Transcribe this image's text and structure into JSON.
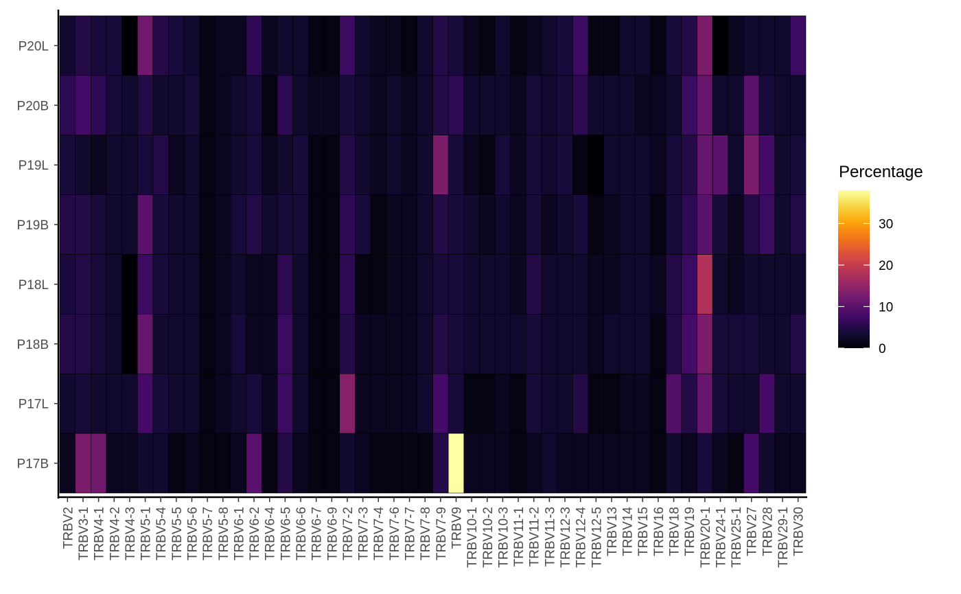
{
  "chart_data": {
    "type": "heatmap",
    "legend_title": "Percentage",
    "legend_ticks": [
      0,
      10,
      20,
      30
    ],
    "color_scale": "inferno",
    "value_range": [
      0,
      38
    ],
    "legend_position": "right",
    "grid": false,
    "x": [
      "TRBV2",
      "TRBV3-1",
      "TRBV4-1",
      "TRBV4-2",
      "TRBV4-3",
      "TRBV5-1",
      "TRBV5-4",
      "TRBV5-5",
      "TRBV5-6",
      "TRBV5-7",
      "TRBV5-8",
      "TRBV6-1",
      "TRBV6-2",
      "TRBV6-4",
      "TRBV6-5",
      "TRBV6-6",
      "TRBV6-7",
      "TRBV6-9",
      "TRBV7-2",
      "TRBV7-3",
      "TRBV7-4",
      "TRBV7-6",
      "TRBV7-7",
      "TRBV7-8",
      "TRBV7-9",
      "TRBV9",
      "TRBV10-1",
      "TRBV10-2",
      "TRBV10-3",
      "TRBV11-1",
      "TRBV11-2",
      "TRBV11-3",
      "TRBV12-3",
      "TRBV12-4",
      "TRBV12-5",
      "TRBV13",
      "TRBV14",
      "TRBV15",
      "TRBV16",
      "TRBV18",
      "TRBV19",
      "TRBV20-1",
      "TRBV24-1",
      "TRBV25-1",
      "TRBV27",
      "TRBV28",
      "TRBV29-1",
      "TRBV30"
    ],
    "y": [
      "P20L",
      "P20B",
      "P19L",
      "P19B",
      "P18L",
      "P18B",
      "P17L",
      "P17B"
    ],
    "values": [
      [
        3,
        5,
        4,
        4,
        0,
        12,
        5,
        4,
        3,
        1,
        2,
        2,
        6,
        2,
        3,
        3,
        1,
        1,
        7,
        3,
        2,
        2,
        1,
        3,
        5,
        4,
        2,
        1,
        3,
        1,
        2,
        3,
        4,
        7,
        1,
        1,
        3,
        3,
        1,
        4,
        5,
        13,
        0,
        2,
        3,
        3,
        3,
        7
      ],
      [
        6,
        8,
        6,
        4,
        3,
        5,
        3,
        3,
        4,
        1,
        2,
        3,
        4,
        1,
        6,
        3,
        2,
        2,
        4,
        3,
        2,
        3,
        2,
        3,
        5,
        6,
        3,
        3,
        3,
        2,
        4,
        3,
        4,
        6,
        3,
        3,
        3,
        2,
        2,
        3,
        7,
        11,
        3,
        3,
        10,
        4,
        3,
        3
      ],
      [
        4,
        3,
        2,
        3,
        3,
        4,
        5,
        2,
        3,
        1,
        2,
        3,
        4,
        2,
        3,
        4,
        1,
        1,
        5,
        3,
        2,
        3,
        2,
        3,
        13,
        4,
        2,
        1,
        4,
        2,
        4,
        3,
        4,
        1,
        0,
        3,
        3,
        3,
        2,
        4,
        5,
        11,
        10,
        3,
        13,
        8,
        3,
        4
      ],
      [
        5,
        5,
        4,
        3,
        3,
        10,
        4,
        3,
        3,
        1,
        2,
        4,
        5,
        3,
        4,
        4,
        1,
        1,
        6,
        4,
        1,
        2,
        2,
        3,
        5,
        4,
        3,
        2,
        3,
        2,
        4,
        2,
        3,
        4,
        1,
        2,
        3,
        3,
        1,
        4,
        6,
        10,
        4,
        2,
        5,
        7,
        3,
        5
      ],
      [
        4,
        5,
        4,
        3,
        0,
        7,
        4,
        3,
        3,
        1,
        2,
        3,
        2,
        2,
        6,
        3,
        1,
        1,
        6,
        1,
        1,
        2,
        2,
        3,
        4,
        4,
        3,
        3,
        3,
        2,
        5,
        3,
        3,
        3,
        2,
        2,
        3,
        3,
        2,
        5,
        7,
        18,
        3,
        2,
        3,
        3,
        3,
        3
      ],
      [
        5,
        5,
        4,
        3,
        0,
        11,
        3,
        3,
        3,
        1,
        2,
        4,
        2,
        2,
        7,
        3,
        1,
        1,
        5,
        2,
        2,
        2,
        2,
        3,
        5,
        4,
        3,
        3,
        3,
        3,
        4,
        3,
        3,
        3,
        2,
        3,
        3,
        3,
        1,
        5,
        8,
        13,
        4,
        4,
        4,
        3,
        3,
        5
      ],
      [
        3,
        4,
        3,
        3,
        3,
        8,
        4,
        3,
        3,
        1,
        2,
        3,
        4,
        2,
        7,
        3,
        1,
        1,
        14,
        2,
        2,
        2,
        2,
        3,
        8,
        4,
        1,
        1,
        2,
        1,
        4,
        3,
        3,
        5,
        1,
        1,
        2,
        2,
        1,
        9,
        5,
        11,
        4,
        3,
        3,
        8,
        3,
        3
      ],
      [
        2,
        13,
        12,
        2,
        2,
        3,
        3,
        1,
        2,
        1,
        1,
        2,
        10,
        1,
        5,
        2,
        1,
        1,
        3,
        2,
        1,
        1,
        1,
        1,
        5,
        38,
        2,
        2,
        2,
        1,
        2,
        3,
        2,
        2,
        2,
        2,
        2,
        2,
        1,
        3,
        2,
        4,
        2,
        1,
        8,
        3,
        2,
        2
      ]
    ]
  }
}
